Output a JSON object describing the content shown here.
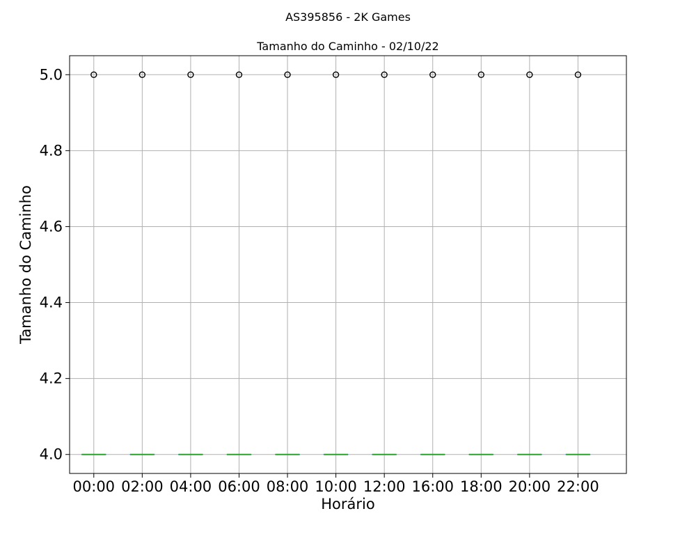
{
  "chart_data": {
    "type": "box",
    "suptitle": "AS395856 - 2K Games",
    "title": "Tamanho do Caminho - 02/10/22",
    "xlabel": "Horário",
    "ylabel": "Tamanho do Caminho",
    "categories": [
      "00:00",
      "02:00",
      "04:00",
      "06:00",
      "08:00",
      "10:00",
      "12:00",
      "16:00",
      "18:00",
      "20:00",
      "22:00"
    ],
    "ylim": [
      3.95,
      5.05
    ],
    "yticks": [
      "4.0",
      "4.2",
      "4.4",
      "4.6",
      "4.8",
      "5.0"
    ],
    "grid": true,
    "boxes": [
      {
        "category": "00:00",
        "min": 4.0,
        "q1": 4.0,
        "median": 4.0,
        "q3": 4.0,
        "max": 4.0,
        "outliers": [
          5.0
        ]
      },
      {
        "category": "02:00",
        "min": 4.0,
        "q1": 4.0,
        "median": 4.0,
        "q3": 4.0,
        "max": 4.0,
        "outliers": [
          5.0
        ]
      },
      {
        "category": "04:00",
        "min": 4.0,
        "q1": 4.0,
        "median": 4.0,
        "q3": 4.0,
        "max": 4.0,
        "outliers": [
          5.0
        ]
      },
      {
        "category": "06:00",
        "min": 4.0,
        "q1": 4.0,
        "median": 4.0,
        "q3": 4.0,
        "max": 4.0,
        "outliers": [
          5.0
        ]
      },
      {
        "category": "08:00",
        "min": 4.0,
        "q1": 4.0,
        "median": 4.0,
        "q3": 4.0,
        "max": 4.0,
        "outliers": [
          5.0
        ]
      },
      {
        "category": "10:00",
        "min": 4.0,
        "q1": 4.0,
        "median": 4.0,
        "q3": 4.0,
        "max": 4.0,
        "outliers": [
          5.0
        ]
      },
      {
        "category": "12:00",
        "min": 4.0,
        "q1": 4.0,
        "median": 4.0,
        "q3": 4.0,
        "max": 4.0,
        "outliers": [
          5.0
        ]
      },
      {
        "category": "16:00",
        "min": 4.0,
        "q1": 4.0,
        "median": 4.0,
        "q3": 4.0,
        "max": 4.0,
        "outliers": [
          5.0
        ]
      },
      {
        "category": "18:00",
        "min": 4.0,
        "q1": 4.0,
        "median": 4.0,
        "q3": 4.0,
        "max": 4.0,
        "outliers": [
          5.0
        ]
      },
      {
        "category": "20:00",
        "min": 4.0,
        "q1": 4.0,
        "median": 4.0,
        "q3": 4.0,
        "max": 4.0,
        "outliers": [
          5.0
        ]
      },
      {
        "category": "22:00",
        "min": 4.0,
        "q1": 4.0,
        "median": 4.0,
        "q3": 4.0,
        "max": 4.0,
        "outliers": [
          5.0
        ]
      }
    ],
    "colors": {
      "median": "#2ca02c",
      "box": "#1f77b4",
      "grid": "#b0b0b0",
      "outlier": "#000000"
    }
  }
}
